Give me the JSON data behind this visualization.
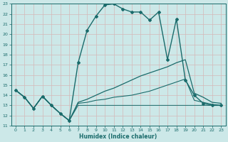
{
  "xlabel": "Humidex (Indice chaleur)",
  "ylabel": "",
  "bg_color": "#cce8e8",
  "grid_color": "#d4b8b8",
  "line_color": "#1a6b6b",
  "xlim": [
    -0.5,
    23.5
  ],
  "ylim": [
    11,
    23
  ],
  "yticks": [
    11,
    12,
    13,
    14,
    15,
    16,
    17,
    18,
    19,
    20,
    21,
    22,
    23
  ],
  "xticks": [
    0,
    1,
    2,
    3,
    4,
    5,
    6,
    7,
    8,
    9,
    10,
    11,
    12,
    13,
    14,
    15,
    16,
    17,
    18,
    19,
    20,
    21,
    22,
    23
  ],
  "series": [
    {
      "x": [
        0,
        1,
        2,
        3,
        4,
        5,
        6,
        7,
        8,
        9,
        10,
        11,
        12,
        13,
        14,
        15,
        16,
        17,
        18,
        19,
        20,
        21,
        22,
        23
      ],
      "y": [
        14.5,
        13.8,
        12.7,
        13.9,
        13.0,
        12.2,
        11.5,
        17.2,
        20.4,
        21.8,
        22.9,
        23.0,
        22.5,
        22.2,
        22.2,
        21.4,
        22.2,
        17.5,
        21.5,
        15.5,
        14.0,
        13.2,
        13.0,
        13.0
      ],
      "marker": "D",
      "linestyle": "-",
      "linewidth": 1.0,
      "markersize": 2.0
    },
    {
      "x": [
        0,
        1,
        2,
        3,
        4,
        5,
        6,
        7,
        8,
        9,
        10,
        11,
        12,
        13,
        14,
        15,
        16,
        17,
        18,
        19,
        20,
        21,
        22,
        23
      ],
      "y": [
        14.5,
        13.8,
        12.7,
        13.9,
        13.0,
        12.2,
        11.5,
        13.3,
        13.6,
        14.0,
        14.4,
        14.7,
        15.1,
        15.5,
        15.9,
        16.2,
        16.5,
        16.8,
        17.2,
        17.5,
        14.2,
        13.8,
        13.3,
        13.2
      ],
      "marker": "",
      "linestyle": "-",
      "linewidth": 0.9,
      "markersize": 0
    },
    {
      "x": [
        0,
        1,
        2,
        3,
        4,
        5,
        6,
        7,
        8,
        9,
        10,
        11,
        12,
        13,
        14,
        15,
        16,
        17,
        18,
        19,
        20,
        21,
        22,
        23
      ],
      "y": [
        14.5,
        13.8,
        12.7,
        13.9,
        13.0,
        12.2,
        11.5,
        13.2,
        13.3,
        13.5,
        13.6,
        13.8,
        13.9,
        14.0,
        14.2,
        14.4,
        14.7,
        15.0,
        15.3,
        15.6,
        13.5,
        13.3,
        13.1,
        13.0
      ],
      "marker": "",
      "linestyle": "-",
      "linewidth": 0.8,
      "markersize": 0
    },
    {
      "x": [
        0,
        1,
        2,
        3,
        4,
        5,
        6,
        7,
        8,
        9,
        10,
        11,
        12,
        13,
        14,
        15,
        16,
        17,
        18,
        19,
        20,
        21,
        22,
        23
      ],
      "y": [
        14.5,
        13.8,
        12.7,
        13.9,
        13.0,
        12.2,
        11.5,
        13.0,
        13.0,
        13.0,
        13.0,
        13.0,
        13.0,
        13.0,
        13.0,
        13.0,
        13.0,
        13.0,
        13.0,
        13.0,
        13.0,
        13.0,
        13.0,
        13.0
      ],
      "marker": "",
      "linestyle": "-",
      "linewidth": 0.7,
      "markersize": 0
    }
  ]
}
